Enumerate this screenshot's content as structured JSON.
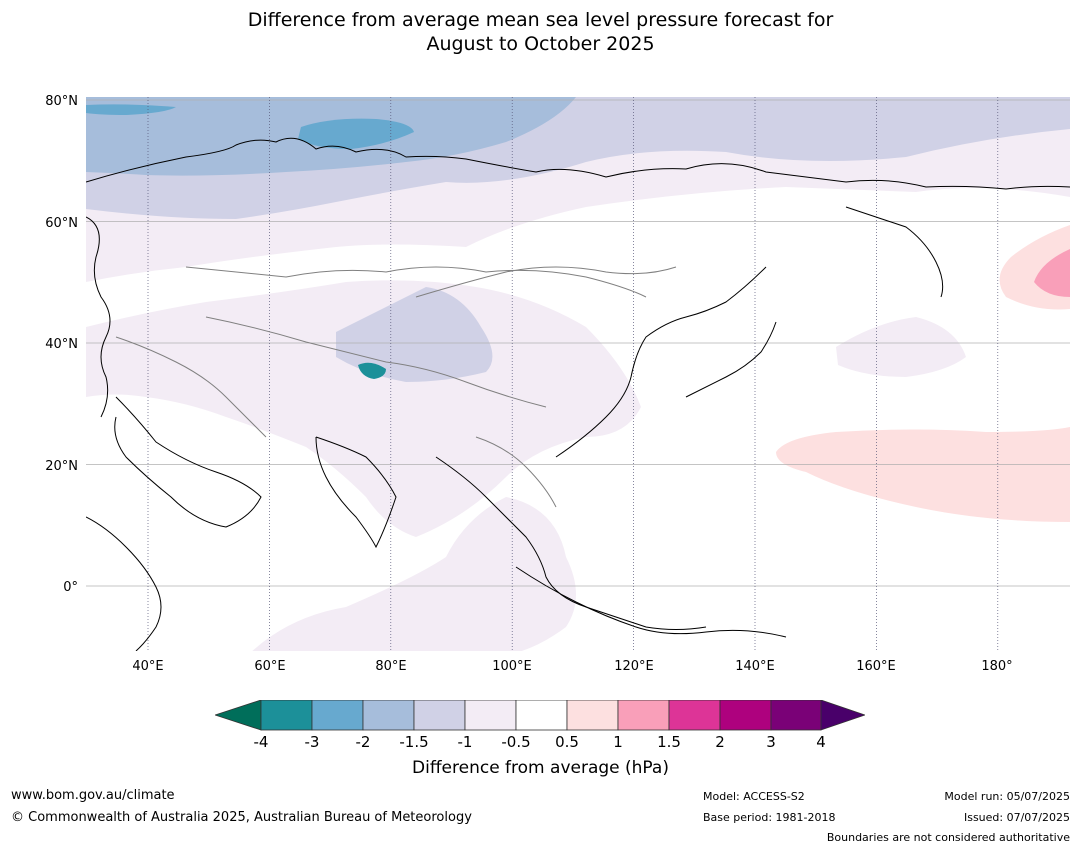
{
  "title_line1": "Difference from average mean sea level pressure forecast for",
  "title_line2": "August to October 2025",
  "map": {
    "lat_labels": [
      "80°N",
      "60°N",
      "40°N",
      "20°N",
      "0°"
    ],
    "lon_labels": [
      "40°E",
      "60°E",
      "80°E",
      "100°E",
      "120°E",
      "140°E",
      "160°E",
      "180°"
    ],
    "colors": {
      "neg_4_under": "#006e5a",
      "neg_4_3": "#1c9099",
      "neg_3_2": "#67a9cf",
      "neg_2_15": "#a6bddb",
      "neg_15_1": "#d0d1e6",
      "neg_1_05": "#f3ecf5",
      "neutral": "#ffffff",
      "pos_05_1": "#fde0e0",
      "pos_1_15": "#f99fb9",
      "pos_15_2": "#dd3497",
      "pos_2_3": "#ae017e",
      "pos_3_4": "#7a0177",
      "pos_4_over": "#49006a"
    }
  },
  "colorbar": {
    "ticks": [
      "-4",
      "-3",
      "-2",
      "-1.5",
      "-1",
      "-0.5",
      "0.5",
      "1",
      "1.5",
      "2",
      "3",
      "4"
    ],
    "label": "Difference from average (hPa)"
  },
  "footer": {
    "website": "www.bom.gov.au/climate",
    "copyright": "© Commonwealth of Australia 2025, Australian Bureau of Meteorology",
    "model": "Model: ACCESS-S2",
    "base_period": "Base period: 1981-2018",
    "model_run": "Model run: 05/07/2025",
    "issued": "Issued: 07/07/2025",
    "disclaimer": "Boundaries are not considered authoritative"
  }
}
